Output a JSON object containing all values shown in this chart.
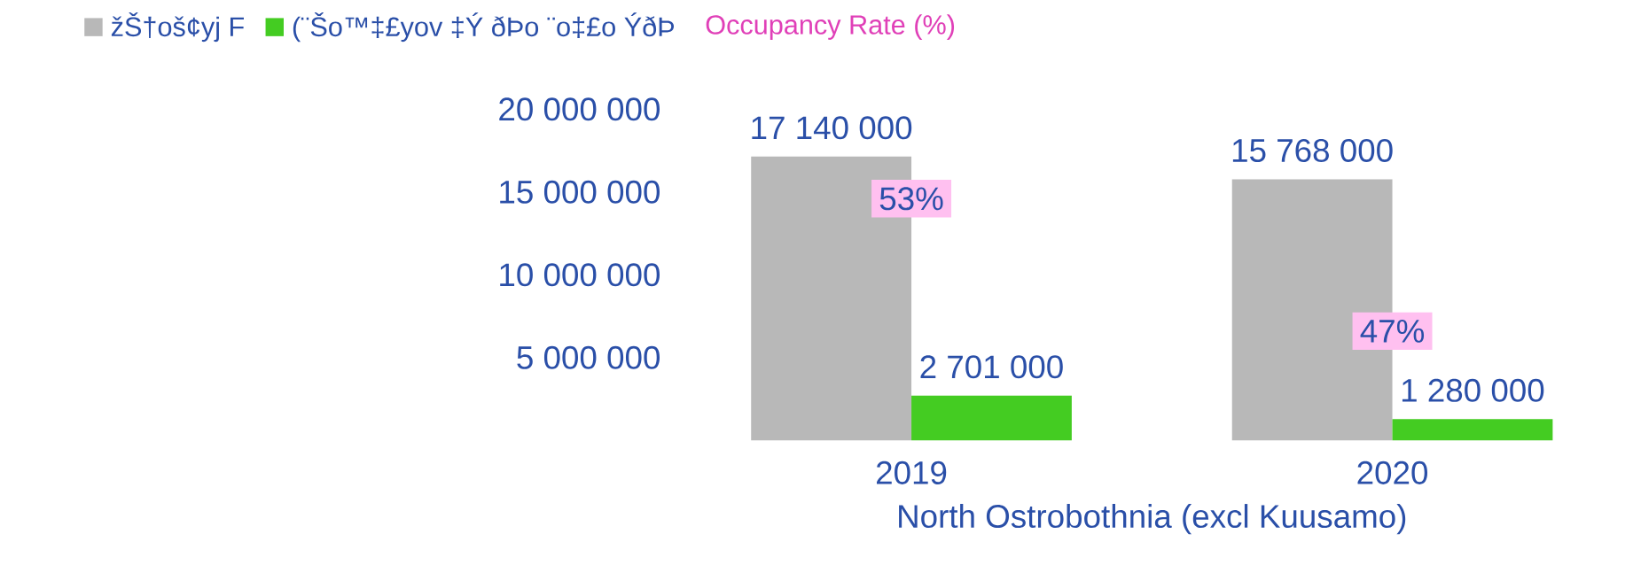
{
  "chart_data": {
    "type": "bar",
    "categories": [
      "2019",
      "2020"
    ],
    "xlabel": "North Ostrobothnia (excl Kuusamo)",
    "ylim": [
      0,
      20000000
    ],
    "yticks": [
      {
        "value": 5000000,
        "label": "5 000 000"
      },
      {
        "value": 10000000,
        "label": "10 000 000"
      },
      {
        "value": 15000000,
        "label": "15 000 000"
      },
      {
        "value": 20000000,
        "label": "20 000 000"
      }
    ],
    "grid": false,
    "legend": "top",
    "series": [
      {
        "name": "žŠ†oš¢yj F",
        "color": "#b8b8b8",
        "values": [
          17140000,
          15768000
        ],
        "value_labels": [
          "17 140 000",
          "15 768 000"
        ]
      },
      {
        "name": "(¨Šo™‡£yov ‡Ý ðÞo ¨o‡£o ÝðÞ",
        "color": "#44cc22",
        "values": [
          2701000,
          1280000
        ],
        "value_labels": [
          "2 701 000",
          "1 280 000"
        ]
      }
    ],
    "annotations": [
      "Occupancy Rate (%)",
      {
        "text": "53%",
        "x": "2019",
        "y": 14600000
      },
      {
        "text": "47%",
        "x": "2020",
        "y": 6600000
      }
    ]
  }
}
